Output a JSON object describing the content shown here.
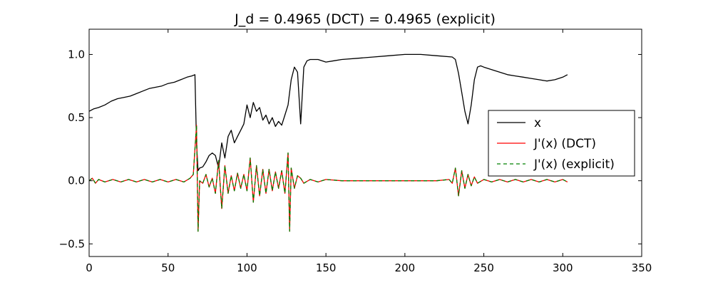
{
  "chart_data": {
    "type": "line",
    "title": "J_d = 0.4965 (DCT) = 0.4965 (explicit)",
    "xlabel": "",
    "ylabel": "",
    "xlim": [
      0,
      350
    ],
    "ylim": [
      -0.6,
      1.2
    ],
    "xticks": [
      0,
      50,
      100,
      150,
      200,
      250,
      300,
      350
    ],
    "yticks": [
      -0.5,
      0.0,
      0.5,
      1.0
    ],
    "xtick_labels": [
      "0",
      "50",
      "100",
      "150",
      "200",
      "250",
      "300",
      "350"
    ],
    "ytick_labels": [
      "−0.5",
      "0.0",
      "0.5",
      "1.0"
    ],
    "grid": false,
    "legend_position": "center-right",
    "series": [
      {
        "name": "x",
        "color": "#000000",
        "style": "solid",
        "points": [
          [
            0,
            0.55
          ],
          [
            3,
            0.57
          ],
          [
            6,
            0.58
          ],
          [
            10,
            0.6
          ],
          [
            14,
            0.63
          ],
          [
            18,
            0.65
          ],
          [
            22,
            0.66
          ],
          [
            26,
            0.67
          ],
          [
            30,
            0.69
          ],
          [
            34,
            0.71
          ],
          [
            38,
            0.73
          ],
          [
            42,
            0.74
          ],
          [
            46,
            0.75
          ],
          [
            50,
            0.77
          ],
          [
            54,
            0.78
          ],
          [
            58,
            0.8
          ],
          [
            62,
            0.82
          ],
          [
            65,
            0.83
          ],
          [
            67,
            0.84
          ],
          [
            68,
            0.3
          ],
          [
            69,
            0.08
          ],
          [
            70,
            0.1
          ],
          [
            72,
            0.11
          ],
          [
            74,
            0.15
          ],
          [
            76,
            0.2
          ],
          [
            78,
            0.22
          ],
          [
            80,
            0.2
          ],
          [
            82,
            0.1
          ],
          [
            84,
            0.3
          ],
          [
            86,
            0.18
          ],
          [
            88,
            0.35
          ],
          [
            90,
            0.4
          ],
          [
            92,
            0.3
          ],
          [
            94,
            0.35
          ],
          [
            96,
            0.4
          ],
          [
            98,
            0.45
          ],
          [
            100,
            0.6
          ],
          [
            102,
            0.5
          ],
          [
            104,
            0.62
          ],
          [
            106,
            0.55
          ],
          [
            108,
            0.58
          ],
          [
            110,
            0.48
          ],
          [
            112,
            0.52
          ],
          [
            114,
            0.45
          ],
          [
            116,
            0.5
          ],
          [
            118,
            0.43
          ],
          [
            120,
            0.47
          ],
          [
            122,
            0.44
          ],
          [
            124,
            0.52
          ],
          [
            126,
            0.6
          ],
          [
            128,
            0.8
          ],
          [
            130,
            0.9
          ],
          [
            132,
            0.86
          ],
          [
            134,
            0.45
          ],
          [
            136,
            0.9
          ],
          [
            138,
            0.95
          ],
          [
            140,
            0.96
          ],
          [
            145,
            0.96
          ],
          [
            150,
            0.94
          ],
          [
            155,
            0.95
          ],
          [
            160,
            0.96
          ],
          [
            170,
            0.97
          ],
          [
            180,
            0.98
          ],
          [
            190,
            0.99
          ],
          [
            200,
            1.0
          ],
          [
            210,
            1.0
          ],
          [
            220,
            0.99
          ],
          [
            230,
            0.98
          ],
          [
            232,
            0.96
          ],
          [
            234,
            0.85
          ],
          [
            236,
            0.7
          ],
          [
            238,
            0.55
          ],
          [
            240,
            0.45
          ],
          [
            242,
            0.6
          ],
          [
            244,
            0.8
          ],
          [
            246,
            0.9
          ],
          [
            248,
            0.91
          ],
          [
            250,
            0.9
          ],
          [
            255,
            0.88
          ],
          [
            260,
            0.86
          ],
          [
            265,
            0.84
          ],
          [
            270,
            0.83
          ],
          [
            275,
            0.82
          ],
          [
            280,
            0.81
          ],
          [
            285,
            0.8
          ],
          [
            290,
            0.79
          ],
          [
            295,
            0.8
          ],
          [
            300,
            0.82
          ],
          [
            303,
            0.84
          ]
        ]
      },
      {
        "name": "J'(x) (DCT)",
        "color": "#ff0000",
        "style": "solid",
        "points": [
          [
            0,
            0.0
          ],
          [
            2,
            0.02
          ],
          [
            4,
            -0.02
          ],
          [
            6,
            0.01
          ],
          [
            10,
            -0.01
          ],
          [
            15,
            0.01
          ],
          [
            20,
            -0.01
          ],
          [
            25,
            0.01
          ],
          [
            30,
            -0.01
          ],
          [
            35,
            0.01
          ],
          [
            40,
            -0.01
          ],
          [
            45,
            0.01
          ],
          [
            50,
            -0.01
          ],
          [
            55,
            0.01
          ],
          [
            60,
            -0.01
          ],
          [
            64,
            0.02
          ],
          [
            66,
            0.05
          ],
          [
            68,
            0.44
          ],
          [
            69,
            -0.4
          ],
          [
            70,
            0.0
          ],
          [
            72,
            -0.02
          ],
          [
            74,
            0.05
          ],
          [
            76,
            -0.05
          ],
          [
            78,
            0.02
          ],
          [
            80,
            -0.1
          ],
          [
            82,
            0.16
          ],
          [
            84,
            -0.22
          ],
          [
            86,
            0.12
          ],
          [
            88,
            -0.1
          ],
          [
            90,
            0.04
          ],
          [
            92,
            -0.08
          ],
          [
            94,
            0.06
          ],
          [
            96,
            -0.06
          ],
          [
            98,
            0.05
          ],
          [
            100,
            -0.08
          ],
          [
            102,
            0.18
          ],
          [
            104,
            -0.17
          ],
          [
            106,
            0.12
          ],
          [
            108,
            -0.12
          ],
          [
            110,
            0.09
          ],
          [
            112,
            -0.1
          ],
          [
            114,
            0.09
          ],
          [
            116,
            -0.08
          ],
          [
            118,
            0.07
          ],
          [
            120,
            -0.06
          ],
          [
            122,
            0.08
          ],
          [
            124,
            -0.1
          ],
          [
            126,
            0.22
          ],
          [
            127,
            -0.4
          ],
          [
            128,
            0.1
          ],
          [
            130,
            -0.06
          ],
          [
            132,
            0.04
          ],
          [
            134,
            0.02
          ],
          [
            136,
            -0.02
          ],
          [
            140,
            0.01
          ],
          [
            145,
            -0.01
          ],
          [
            150,
            0.01
          ],
          [
            160,
            0.0
          ],
          [
            170,
            0.0
          ],
          [
            180,
            0.0
          ],
          [
            190,
            0.0
          ],
          [
            200,
            0.0
          ],
          [
            210,
            0.0
          ],
          [
            220,
            0.0
          ],
          [
            228,
            0.01
          ],
          [
            230,
            -0.02
          ],
          [
            232,
            0.1
          ],
          [
            234,
            -0.12
          ],
          [
            236,
            0.08
          ],
          [
            238,
            -0.06
          ],
          [
            240,
            0.05
          ],
          [
            242,
            -0.04
          ],
          [
            244,
            0.03
          ],
          [
            246,
            -0.02
          ],
          [
            250,
            0.01
          ],
          [
            255,
            -0.01
          ],
          [
            260,
            0.01
          ],
          [
            265,
            -0.01
          ],
          [
            270,
            0.01
          ],
          [
            275,
            -0.01
          ],
          [
            280,
            0.01
          ],
          [
            285,
            -0.01
          ],
          [
            290,
            0.01
          ],
          [
            295,
            -0.01
          ],
          [
            300,
            0.01
          ],
          [
            303,
            -0.01
          ]
        ]
      },
      {
        "name": "J'(x) (explicit)",
        "color": "#008000",
        "style": "dashed",
        "points": [
          [
            0,
            0.0
          ],
          [
            2,
            0.02
          ],
          [
            4,
            -0.02
          ],
          [
            6,
            0.01
          ],
          [
            10,
            -0.01
          ],
          [
            15,
            0.01
          ],
          [
            20,
            -0.01
          ],
          [
            25,
            0.01
          ],
          [
            30,
            -0.01
          ],
          [
            35,
            0.01
          ],
          [
            40,
            -0.01
          ],
          [
            45,
            0.01
          ],
          [
            50,
            -0.01
          ],
          [
            55,
            0.01
          ],
          [
            60,
            -0.01
          ],
          [
            64,
            0.02
          ],
          [
            66,
            0.05
          ],
          [
            68,
            0.44
          ],
          [
            69,
            -0.4
          ],
          [
            70,
            0.0
          ],
          [
            72,
            -0.02
          ],
          [
            74,
            0.05
          ],
          [
            76,
            -0.05
          ],
          [
            78,
            0.02
          ],
          [
            80,
            -0.1
          ],
          [
            82,
            0.16
          ],
          [
            84,
            -0.22
          ],
          [
            86,
            0.12
          ],
          [
            88,
            -0.1
          ],
          [
            90,
            0.04
          ],
          [
            92,
            -0.08
          ],
          [
            94,
            0.06
          ],
          [
            96,
            -0.06
          ],
          [
            98,
            0.05
          ],
          [
            100,
            -0.08
          ],
          [
            102,
            0.18
          ],
          [
            104,
            -0.17
          ],
          [
            106,
            0.12
          ],
          [
            108,
            -0.12
          ],
          [
            110,
            0.09
          ],
          [
            112,
            -0.1
          ],
          [
            114,
            0.09
          ],
          [
            116,
            -0.08
          ],
          [
            118,
            0.07
          ],
          [
            120,
            -0.06
          ],
          [
            122,
            0.08
          ],
          [
            124,
            -0.1
          ],
          [
            126,
            0.22
          ],
          [
            127,
            -0.4
          ],
          [
            128,
            0.1
          ],
          [
            130,
            -0.06
          ],
          [
            132,
            0.04
          ],
          [
            134,
            0.02
          ],
          [
            136,
            -0.02
          ],
          [
            140,
            0.01
          ],
          [
            145,
            -0.01
          ],
          [
            150,
            0.01
          ],
          [
            160,
            0.0
          ],
          [
            170,
            0.0
          ],
          [
            180,
            0.0
          ],
          [
            190,
            0.0
          ],
          [
            200,
            0.0
          ],
          [
            210,
            0.0
          ],
          [
            220,
            0.0
          ],
          [
            228,
            0.01
          ],
          [
            230,
            -0.02
          ],
          [
            232,
            0.1
          ],
          [
            234,
            -0.12
          ],
          [
            236,
            0.08
          ],
          [
            238,
            -0.06
          ],
          [
            240,
            0.05
          ],
          [
            242,
            -0.04
          ],
          [
            244,
            0.03
          ],
          [
            246,
            -0.02
          ],
          [
            250,
            0.01
          ],
          [
            255,
            -0.01
          ],
          [
            260,
            0.01
          ],
          [
            265,
            -0.01
          ],
          [
            270,
            0.01
          ],
          [
            275,
            -0.01
          ],
          [
            280,
            0.01
          ],
          [
            285,
            -0.01
          ],
          [
            290,
            0.01
          ],
          [
            295,
            -0.01
          ],
          [
            300,
            0.01
          ],
          [
            303,
            -0.01
          ]
        ]
      }
    ]
  }
}
